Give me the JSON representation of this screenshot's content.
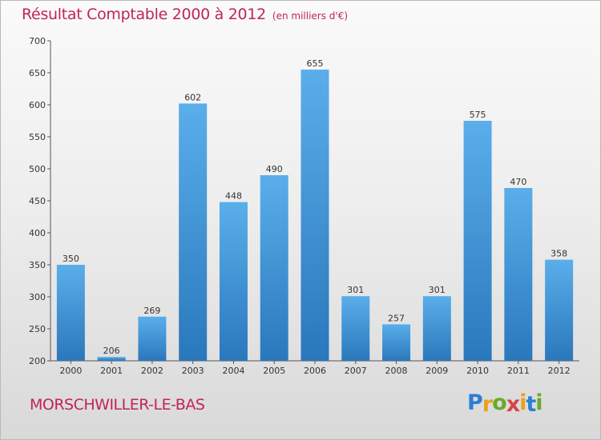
{
  "title": "Résultat Comptable 2000 à 2012",
  "subtitle": "(en milliers d'€)",
  "place": "MORSCHWILLER-LE-BAS",
  "logo": {
    "text": "Proxiti",
    "letters": [
      {
        "ch": "P",
        "color": "#2a7fd4"
      },
      {
        "ch": "r",
        "color": "#e8a020"
      },
      {
        "ch": "o",
        "color": "#6aaa2a"
      },
      {
        "ch": "x",
        "color": "#d64545"
      },
      {
        "ch": "i",
        "color": "#e8a020"
      },
      {
        "ch": "t",
        "color": "#2a7fd4"
      },
      {
        "ch": "i",
        "color": "#6aaa2a"
      }
    ]
  },
  "colors": {
    "bar_top": "#5aaeea",
    "bar_bottom": "#2a78bc",
    "accent": "#c0245c"
  },
  "chart_data": {
    "type": "bar",
    "title": "Résultat Comptable 2000 à 2012",
    "subtitle": "(en milliers d'€)",
    "xlabel": "",
    "ylabel": "",
    "categories": [
      "2000",
      "2001",
      "2002",
      "2003",
      "2004",
      "2005",
      "2006",
      "2007",
      "2008",
      "2009",
      "2010",
      "2011",
      "2012"
    ],
    "values": [
      350,
      206,
      269,
      602,
      448,
      490,
      655,
      301,
      257,
      301,
      575,
      470,
      358
    ],
    "ylim": [
      200,
      700
    ],
    "yticks": [
      200,
      250,
      300,
      350,
      400,
      450,
      500,
      550,
      600,
      650,
      700
    ],
    "grid": false
  }
}
